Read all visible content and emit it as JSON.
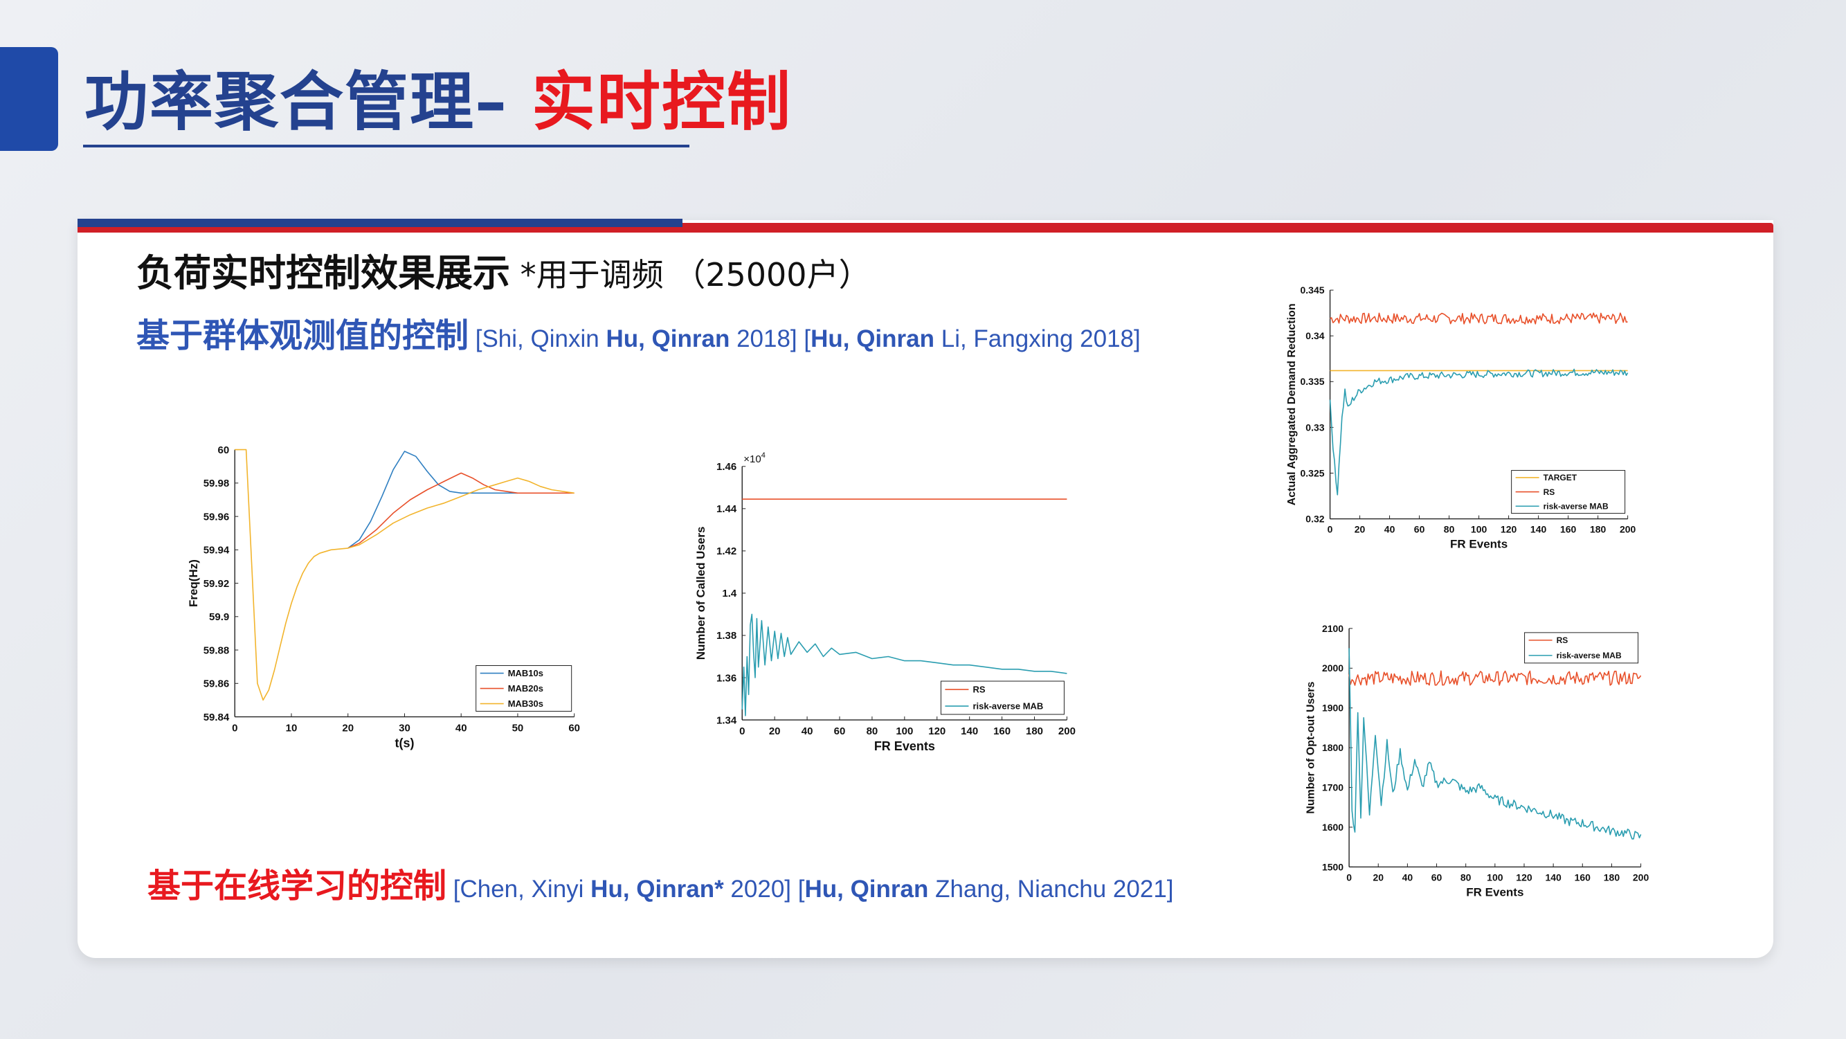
{
  "slide": {
    "title_main": "功率聚合管理– ",
    "title_accent": "实时控制",
    "heading": "负荷实时控制效果展示",
    "heading_note": " *用于调频 （25000户）",
    "section1": {
      "label": "基于群体观测值的控制",
      "refs": [
        {
          "pre": " [Shi, Qinxin ",
          "bold": "Hu, Qinran",
          "post": " 2018] [",
          "bold2": "Hu, Qinran",
          "post2": " Li, Fangxing 2018]"
        }
      ]
    },
    "section2": {
      "label": "基于在线学习的控制",
      "refs": [
        {
          "pre": " [Chen, Xinyi ",
          "bold": "Hu, Qinran*",
          "post": " 2020]  [",
          "bold2": "Hu, Qinran",
          "post2": " Zhang, Nianchu 2021]"
        }
      ]
    }
  },
  "chart_data": [
    {
      "type": "line",
      "xlabel": "t(s)",
      "ylabel": "Freq(Hz)",
      "xlim": [
        0,
        60
      ],
      "ylim": [
        59.84,
        60
      ],
      "xticks": [
        "0",
        "10",
        "20",
        "30",
        "40",
        "50",
        "60"
      ],
      "yticks": [
        "59.84",
        "59.86",
        "59.88",
        "59.9",
        "59.92",
        "59.94",
        "59.96",
        "59.98",
        "60"
      ],
      "legend_position": "bottom-right",
      "series": [
        {
          "name": "MAB10s",
          "color": "#2f7fc1",
          "x": [
            20,
            22,
            24,
            26,
            28,
            30,
            32,
            34,
            36,
            38,
            40,
            45,
            50
          ],
          "y": [
            59.941,
            59.946,
            59.957,
            59.972,
            59.988,
            59.999,
            59.996,
            59.987,
            59.979,
            59.975,
            59.974,
            59.974,
            59.974
          ]
        },
        {
          "name": "MAB20s",
          "color": "#e8502a",
          "x": [
            20,
            22,
            25,
            28,
            31,
            34,
            37,
            40,
            42,
            44,
            46,
            48,
            50,
            55,
            60
          ],
          "y": [
            59.941,
            59.944,
            59.952,
            59.962,
            59.97,
            59.976,
            59.981,
            59.986,
            59.983,
            59.979,
            59.976,
            59.975,
            59.974,
            59.974,
            59.974
          ]
        },
        {
          "name": "MAB30s",
          "color": "#f2b42c",
          "x": [
            0,
            2,
            3,
            4,
            5,
            6,
            7,
            8,
            9,
            10,
            11,
            12,
            13,
            14,
            15,
            17,
            20,
            22,
            25,
            28,
            31,
            34,
            37,
            40,
            43,
            46,
            48,
            50,
            52,
            54,
            56,
            58,
            60
          ],
          "y": [
            60.0,
            60.0,
            59.93,
            59.86,
            59.85,
            59.856,
            59.868,
            59.882,
            59.896,
            59.908,
            59.918,
            59.926,
            59.932,
            59.936,
            59.938,
            59.94,
            59.941,
            59.943,
            59.949,
            59.956,
            59.961,
            59.965,
            59.968,
            59.972,
            59.976,
            59.979,
            59.981,
            59.983,
            59.981,
            59.978,
            59.976,
            59.975,
            59.974
          ]
        }
      ]
    },
    {
      "type": "line",
      "xlabel": "FR Events",
      "ylabel": "Number of Called Users",
      "multiplier_label": "×10",
      "multiplier_exp": "4",
      "xlim": [
        0,
        200
      ],
      "ylim": [
        1.34,
        1.46
      ],
      "xticks": [
        "0",
        "20",
        "40",
        "60",
        "80",
        "100",
        "120",
        "140",
        "160",
        "180",
        "200"
      ],
      "yticks": [
        "1.34",
        "1.36",
        "1.38",
        "1.4",
        "1.42",
        "1.44",
        "1.46"
      ],
      "legend_position": "bottom-right",
      "series": [
        {
          "name": "RS",
          "color": "#e8502a",
          "x": [
            0,
            200
          ],
          "y": [
            1.4445,
            1.4445
          ]
        },
        {
          "name": "risk-averse MAB",
          "color": "#2a9db0",
          "x": [
            0,
            1,
            2,
            3,
            4,
            5,
            6,
            7,
            8,
            9,
            10,
            12,
            14,
            16,
            18,
            20,
            22,
            24,
            26,
            28,
            30,
            35,
            40,
            45,
            50,
            55,
            60,
            70,
            80,
            90,
            100,
            110,
            120,
            130,
            140,
            150,
            160,
            170,
            180,
            190,
            200
          ],
          "y": [
            1.345,
            1.365,
            1.342,
            1.37,
            1.352,
            1.385,
            1.39,
            1.372,
            1.36,
            1.388,
            1.365,
            1.387,
            1.366,
            1.384,
            1.368,
            1.382,
            1.369,
            1.381,
            1.37,
            1.379,
            1.371,
            1.377,
            1.372,
            1.376,
            1.37,
            1.374,
            1.371,
            1.372,
            1.369,
            1.37,
            1.368,
            1.368,
            1.367,
            1.366,
            1.366,
            1.365,
            1.364,
            1.364,
            1.363,
            1.363,
            1.362
          ]
        }
      ]
    },
    {
      "type": "line",
      "xlabel": "FR Events",
      "ylabel": "Actual Aggregated Demand Reduction",
      "xlim": [
        0,
        200
      ],
      "ylim": [
        0.32,
        0.345
      ],
      "xticks": [
        "0",
        "20",
        "40",
        "60",
        "80",
        "100",
        "120",
        "140",
        "160",
        "180",
        "200"
      ],
      "yticks": [
        "0.32",
        "0.325",
        "0.33",
        "0.335",
        "0.34",
        "0.345"
      ],
      "legend_position": "bottom-right",
      "series": [
        {
          "name": "TARGET",
          "color": "#f2b42c",
          "x": [
            0,
            200
          ],
          "y": [
            0.3362,
            0.3362
          ]
        },
        {
          "name": "RS",
          "color": "#e8502a",
          "x": [
            0,
            200
          ],
          "y": [
            0.3419,
            0.3419
          ],
          "noise": 0.0006
        },
        {
          "name": "risk-averse MAB",
          "color": "#2a9db0",
          "x": [
            0,
            2,
            4,
            5,
            6,
            8,
            10,
            12,
            15,
            20,
            25,
            30,
            40,
            50,
            60,
            80,
            100,
            120,
            140,
            160,
            180,
            200
          ],
          "y": [
            0.333,
            0.328,
            0.324,
            0.323,
            0.326,
            0.331,
            0.334,
            0.332,
            0.333,
            0.334,
            0.3345,
            0.335,
            0.3352,
            0.3355,
            0.3356,
            0.3357,
            0.3358,
            0.3359,
            0.3359,
            0.336,
            0.336,
            0.336
          ],
          "noise": 0.0004
        }
      ]
    },
    {
      "type": "line",
      "xlabel": "FR Events",
      "ylabel": "Number of Opt-out Users",
      "xlim": [
        0,
        200
      ],
      "ylim": [
        1500,
        2100
      ],
      "xticks": [
        "0",
        "20",
        "40",
        "60",
        "80",
        "100",
        "120",
        "140",
        "160",
        "180",
        "200"
      ],
      "yticks": [
        "1500",
        "1600",
        "1700",
        "1800",
        "1900",
        "2000",
        "2100"
      ],
      "legend_position": "top-right",
      "series": [
        {
          "name": "RS",
          "color": "#e8502a",
          "x": [
            0,
            200
          ],
          "y": [
            1975,
            1975
          ],
          "noise": 18
        },
        {
          "name": "risk-averse MAB",
          "color": "#2a9db0",
          "x": [
            0,
            2,
            4,
            6,
            8,
            10,
            14,
            18,
            22,
            26,
            30,
            35,
            40,
            45,
            50,
            55,
            60,
            70,
            80,
            90,
            100,
            110,
            120,
            130,
            140,
            150,
            160,
            170,
            180,
            190,
            200
          ],
          "y": [
            2060,
            1650,
            1580,
            1900,
            1620,
            1880,
            1630,
            1840,
            1660,
            1810,
            1680,
            1790,
            1690,
            1770,
            1700,
            1760,
            1710,
            1720,
            1690,
            1700,
            1670,
            1660,
            1650,
            1640,
            1630,
            1615,
            1610,
            1600,
            1590,
            1585,
            1575
          ],
          "noise": 12
        }
      ]
    }
  ]
}
